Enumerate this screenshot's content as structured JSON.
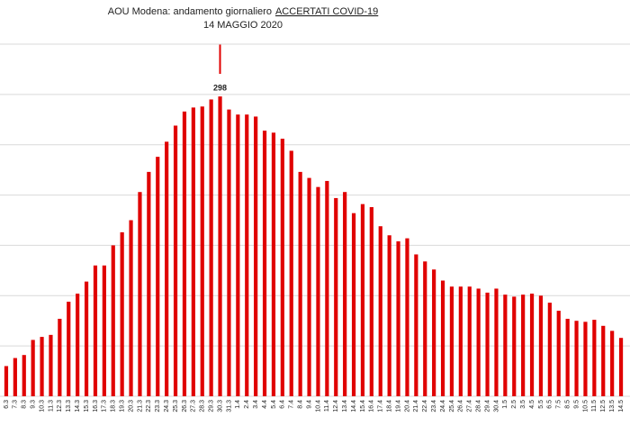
{
  "chart_data": {
    "type": "bar",
    "title": "AOU Modena: andamento giornaliero",
    "title_highlight": "ACCERTATI COVID-19",
    "subtitle": "14 MAGGIO 2020",
    "categories": [
      "6.3",
      "7.3",
      "8.3",
      "9.3",
      "10.3",
      "11.3",
      "12.3",
      "13.3",
      "14.3",
      "15.3",
      "16.3",
      "17.3",
      "18.3",
      "19.3",
      "20.3",
      "21.3",
      "22.3",
      "23.3",
      "24.3",
      "25.3",
      "26.3",
      "27.3",
      "28.3",
      "29.3",
      "30.3",
      "31.3",
      "1.4",
      "2.4",
      "3.4",
      "4.4",
      "5.4",
      "6.4",
      "7.4",
      "8.4",
      "9.4",
      "10.4",
      "11.4",
      "12.4",
      "13.4",
      "14.4",
      "15.4",
      "16.4",
      "17.4",
      "18.4",
      "19.4",
      "20.4",
      "21.4",
      "22.4",
      "23.4",
      "24.4",
      "25.4",
      "26.4",
      "27.4",
      "28.4",
      "29.4",
      "30.4",
      "1.5",
      "2.5",
      "3.5",
      "4.5",
      "5.5",
      "6.5",
      "7.5",
      "8.5",
      "9.5",
      "10.5",
      "11.5",
      "12.5",
      "13.5",
      "14.5"
    ],
    "values": [
      30,
      38,
      41,
      56,
      59,
      61,
      77,
      94,
      102,
      114,
      130,
      130,
      150,
      163,
      175,
      203,
      223,
      238,
      253,
      269,
      283,
      287,
      288,
      295,
      298,
      285,
      280,
      280,
      278,
      264,
      262,
      256,
      244,
      223,
      217,
      208,
      214,
      197,
      203,
      182,
      191,
      188,
      169,
      160,
      154,
      157,
      141,
      134,
      126,
      115,
      109,
      109,
      109,
      107,
      103,
      107,
      101,
      99,
      101,
      102,
      100,
      93,
      85,
      77,
      75,
      74,
      76,
      70,
      65,
      58
    ],
    "value_labels": [
      null,
      null,
      null,
      null,
      null,
      null,
      null,
      null,
      null,
      null,
      null,
      null,
      null,
      null,
      null,
      null,
      null,
      null,
      null,
      null,
      null,
      null,
      null,
      null,
      "298",
      null,
      null,
      null,
      null,
      null,
      null,
      null,
      null,
      null,
      null,
      null,
      null,
      null,
      null,
      null,
      null,
      null,
      null,
      null,
      null,
      null,
      null,
      null,
      null,
      null,
      null,
      null,
      null,
      null,
      null,
      null,
      null,
      null,
      null,
      null,
      null,
      null,
      null,
      null,
      null,
      null,
      null,
      null,
      null,
      null
    ],
    "color": "#e00000",
    "ylim": [
      0,
      350
    ],
    "yticks": [
      0,
      50,
      100,
      150,
      200,
      250,
      300,
      350
    ],
    "grid": true
  }
}
